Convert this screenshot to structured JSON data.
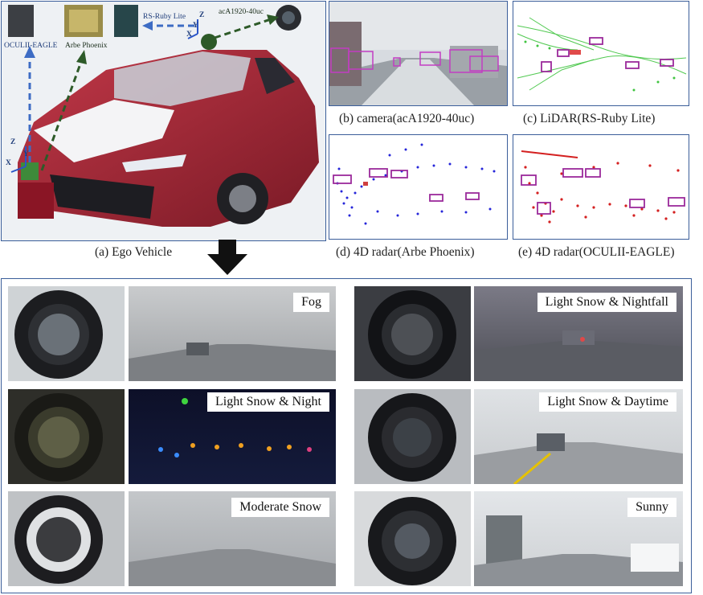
{
  "top": {
    "ego": {
      "caption": "(a) Ego Vehicle",
      "sensors": {
        "oculii": "OCULII-EAGLE",
        "arbe": "Arbe Phoenix",
        "rs": "RS-Ruby Lite",
        "cam": "acA1920-40uc"
      },
      "axes": {
        "x": "X",
        "y": "Y",
        "z": "Z"
      }
    },
    "panels": [
      {
        "caption": "(b) camera(acA1920-40uc)"
      },
      {
        "caption": "(c) LiDAR(RS-Ruby Lite)"
      },
      {
        "caption": "(d) 4D radar(Arbe Phoenix)"
      },
      {
        "caption": "(e) 4D radar(OCULII-EAGLE)"
      }
    ]
  },
  "conditions": [
    {
      "label": "Fog"
    },
    {
      "label": "Light Snow & Nightfall"
    },
    {
      "label": "Light Snow & Night"
    },
    {
      "label": "Light Snow & Daytime"
    },
    {
      "label": "Moderate Snow"
    },
    {
      "label": "Sunny"
    }
  ],
  "colors": {
    "frame": "#3b5e9a",
    "box": "#b03ab0",
    "lidar": "#2fbf2f",
    "radar_d": "#1a1adb",
    "radar_e": "#d42020",
    "arrow": "#111111"
  }
}
